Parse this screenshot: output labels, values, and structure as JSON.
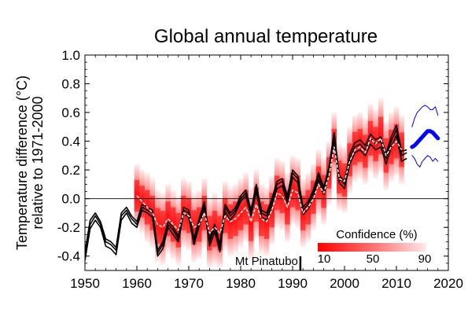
{
  "chart_data": {
    "type": "line",
    "title": "Global annual temperature",
    "ylabel": [
      "Temperature difference (°C)",
      "relative to 1971-2000"
    ],
    "xlim": [
      1950,
      2020
    ],
    "ylim": [
      -0.5,
      1.0
    ],
    "x_ticks": [
      1950,
      1960,
      1970,
      1980,
      1990,
      2000,
      2010,
      2020
    ],
    "y_ticks": [
      -0.4,
      -0.2,
      0.0,
      0.2,
      0.4,
      0.6,
      0.8,
      1.0
    ],
    "y_tick_labels": [
      "-0.4",
      "-0.2",
      "0.0",
      "0.2",
      "0.4",
      "0.6",
      "0.8",
      "1.0"
    ],
    "zero_line": 0.0,
    "annotations": [
      {
        "text": "Mt Pinatubo",
        "x": 1991.5
      }
    ],
    "confidence_legend": {
      "title": "Confidence (%)",
      "labels": [
        "10",
        "50",
        "90"
      ],
      "colors": [
        "#ff0000",
        "#ffe6e6"
      ]
    },
    "series": [
      {
        "color": "#000000",
        "x": [
          1950,
          1951,
          1952,
          1953,
          1954,
          1955,
          1956,
          1957,
          1958,
          1959,
          1960,
          1961,
          1962,
          1963,
          1964,
          1965,
          1966,
          1967,
          1968,
          1969,
          1970,
          1971,
          1972,
          1973,
          1974,
          1975,
          1976,
          1977,
          1978,
          1979,
          1980,
          1981,
          1982,
          1983,
          1984,
          1985,
          1986,
          1987,
          1988,
          1989,
          1990,
          1991,
          1992,
          1993,
          1994,
          1995,
          1996,
          1997,
          1998,
          1999,
          2000,
          2001,
          2002,
          2003,
          2004,
          2005,
          2006,
          2007,
          2008,
          2009,
          2010,
          2011,
          2012
        ],
        "values": [
          -0.4,
          -0.18,
          -0.12,
          -0.18,
          -0.3,
          -0.32,
          -0.36,
          -0.12,
          -0.08,
          -0.14,
          -0.18,
          -0.06,
          -0.08,
          -0.1,
          -0.38,
          -0.32,
          -0.18,
          -0.22,
          -0.28,
          -0.08,
          -0.1,
          -0.3,
          -0.16,
          -0.04,
          -0.3,
          -0.2,
          -0.34,
          -0.06,
          -0.12,
          -0.08,
          0.0,
          0.04,
          -0.1,
          0.08,
          -0.1,
          -0.12,
          -0.02,
          0.1,
          0.12,
          0.0,
          0.18,
          0.14,
          -0.08,
          -0.04,
          0.04,
          0.16,
          0.06,
          0.2,
          0.42,
          0.14,
          0.1,
          0.28,
          0.36,
          0.38,
          0.34,
          0.42,
          0.38,
          0.4,
          0.28,
          0.4,
          0.48,
          0.3,
          0.32
        ]
      },
      {
        "color": "#000000",
        "x": [
          1950,
          1951,
          1952,
          1953,
          1954,
          1955,
          1956,
          1957,
          1958,
          1959,
          1960,
          1961,
          1962,
          1963,
          1964,
          1965,
          1966,
          1967,
          1968,
          1969,
          1970,
          1971,
          1972,
          1973,
          1974,
          1975,
          1976,
          1977,
          1978,
          1979,
          1980,
          1981,
          1982,
          1983,
          1984,
          1985,
          1986,
          1987,
          1988,
          1989,
          1990,
          1991,
          1992,
          1993,
          1994,
          1995,
          1996,
          1997,
          1998,
          1999,
          2000,
          2001,
          2002,
          2003,
          2004,
          2005,
          2006,
          2007,
          2008,
          2009,
          2010,
          2011,
          2012
        ],
        "values": [
          -0.43,
          -0.21,
          -0.15,
          -0.2,
          -0.33,
          -0.35,
          -0.39,
          -0.15,
          -0.1,
          -0.17,
          -0.2,
          -0.08,
          -0.1,
          -0.13,
          -0.4,
          -0.35,
          -0.2,
          -0.25,
          -0.3,
          -0.1,
          -0.13,
          -0.32,
          -0.19,
          -0.06,
          -0.33,
          -0.23,
          -0.37,
          -0.09,
          -0.15,
          -0.1,
          -0.02,
          0.02,
          -0.12,
          0.05,
          -0.13,
          -0.15,
          -0.05,
          0.07,
          0.09,
          -0.03,
          0.15,
          0.11,
          -0.11,
          -0.07,
          0.01,
          0.13,
          0.03,
          0.17,
          0.38,
          0.11,
          0.07,
          0.24,
          0.32,
          0.34,
          0.3,
          0.38,
          0.34,
          0.36,
          0.24,
          0.36,
          0.44,
          0.26,
          0.28
        ]
      },
      {
        "color": "#000000",
        "x": [
          1950,
          1951,
          1952,
          1953,
          1954,
          1955,
          1956,
          1957,
          1958,
          1959,
          1960,
          1961,
          1962,
          1963,
          1964,
          1965,
          1966,
          1967,
          1968,
          1969,
          1970,
          1971,
          1972,
          1973,
          1974,
          1975,
          1976,
          1977,
          1978,
          1979,
          1980,
          1981,
          1982,
          1983,
          1984,
          1985,
          1986,
          1987,
          1988,
          1989,
          1990,
          1991,
          1992,
          1993,
          1994,
          1995,
          1996,
          1997,
          1998,
          1999,
          2000,
          2001,
          2002,
          2003,
          2004,
          2005,
          2006,
          2007,
          2008,
          2009,
          2010,
          2011,
          2012
        ],
        "values": [
          -0.37,
          -0.15,
          -0.1,
          -0.16,
          -0.28,
          -0.3,
          -0.34,
          -0.1,
          -0.06,
          -0.12,
          -0.16,
          -0.04,
          -0.06,
          -0.08,
          -0.36,
          -0.3,
          -0.16,
          -0.2,
          -0.26,
          -0.06,
          -0.08,
          -0.28,
          -0.14,
          -0.02,
          -0.28,
          -0.18,
          -0.32,
          -0.04,
          -0.1,
          -0.06,
          0.02,
          0.06,
          -0.08,
          0.1,
          -0.08,
          -0.1,
          0.0,
          0.12,
          0.14,
          0.02,
          0.2,
          0.16,
          -0.06,
          -0.02,
          0.06,
          0.18,
          0.08,
          0.22,
          0.46,
          0.16,
          0.12,
          0.31,
          0.39,
          0.41,
          0.37,
          0.45,
          0.41,
          0.43,
          0.31,
          0.43,
          0.51,
          0.33,
          0.34
        ]
      },
      {
        "color": "#ffffff",
        "dashed": true,
        "x": [
          1960,
          1961,
          1962,
          1963,
          1964,
          1965,
          1966,
          1967,
          1968,
          1969,
          1970,
          1971,
          1972,
          1973,
          1974,
          1975,
          1976,
          1977,
          1978,
          1979,
          1980,
          1981,
          1982,
          1983,
          1984,
          1985,
          1986,
          1987,
          1988,
          1989,
          1990,
          1991,
          1992,
          1993,
          1994,
          1995,
          1996,
          1997,
          1998,
          1999,
          2000,
          2001,
          2002,
          2003,
          2004,
          2005,
          2006,
          2007,
          2008,
          2009,
          2010,
          2011
        ],
        "values": [
          0.02,
          -0.02,
          -0.06,
          -0.1,
          -0.18,
          -0.2,
          -0.14,
          -0.18,
          -0.22,
          -0.1,
          -0.12,
          -0.2,
          -0.18,
          -0.1,
          -0.24,
          -0.2,
          -0.24,
          -0.12,
          -0.16,
          -0.14,
          -0.1,
          -0.06,
          -0.16,
          -0.04,
          -0.14,
          -0.16,
          -0.08,
          0.04,
          0.02,
          -0.06,
          0.06,
          0.04,
          -0.1,
          -0.06,
          0.0,
          0.1,
          0.04,
          0.16,
          0.36,
          0.14,
          0.12,
          0.26,
          0.34,
          0.36,
          0.32,
          0.42,
          0.38,
          0.42,
          0.3,
          0.36,
          0.4,
          0.34
        ]
      }
    ],
    "confidence_band": {
      "x": [
        1960,
        1961,
        1962,
        1963,
        1964,
        1965,
        1966,
        1967,
        1968,
        1969,
        1970,
        1971,
        1972,
        1973,
        1974,
        1975,
        1976,
        1977,
        1978,
        1979,
        1980,
        1981,
        1982,
        1983,
        1984,
        1985,
        1986,
        1987,
        1988,
        1989,
        1990,
        1991,
        1992,
        1993,
        1994,
        1995,
        1996,
        1997,
        1998,
        1999,
        2000,
        2001,
        2002,
        2003,
        2004,
        2005,
        2006,
        2007,
        2008,
        2009,
        2010,
        2011
      ],
      "lower": [
        -0.2,
        -0.24,
        -0.3,
        -0.34,
        -0.44,
        -0.46,
        -0.38,
        -0.42,
        -0.46,
        -0.34,
        -0.36,
        -0.44,
        -0.42,
        -0.34,
        -0.48,
        -0.46,
        -0.48,
        -0.36,
        -0.4,
        -0.38,
        -0.34,
        -0.3,
        -0.42,
        -0.28,
        -0.38,
        -0.4,
        -0.32,
        -0.2,
        -0.22,
        -0.3,
        -0.18,
        -0.2,
        -0.34,
        -0.3,
        -0.22,
        -0.12,
        -0.18,
        -0.04,
        0.14,
        -0.08,
        -0.1,
        0.04,
        0.12,
        0.14,
        0.1,
        0.18,
        0.14,
        0.18,
        0.06,
        0.12,
        0.16,
        0.1
      ],
      "upper": [
        0.24,
        0.2,
        0.18,
        0.14,
        0.06,
        0.04,
        0.1,
        0.06,
        0.02,
        0.14,
        0.12,
        0.04,
        0.06,
        0.14,
        0.0,
        0.04,
        0.0,
        0.12,
        0.08,
        0.1,
        0.14,
        0.18,
        0.08,
        0.2,
        0.1,
        0.08,
        0.16,
        0.28,
        0.26,
        0.18,
        0.3,
        0.28,
        0.14,
        0.18,
        0.24,
        0.34,
        0.28,
        0.4,
        0.6,
        0.38,
        0.36,
        0.5,
        0.58,
        0.6,
        0.56,
        0.66,
        0.62,
        0.7,
        0.54,
        0.6,
        0.64,
        0.58
      ]
    },
    "forecast": {
      "color": "#0000ff",
      "x": [
        2013,
        2013.5,
        2014,
        2014.5,
        2015,
        2015.5,
        2016,
        2016.5,
        2017,
        2017.5,
        2018
      ],
      "central": [
        0.36,
        0.37,
        0.39,
        0.41,
        0.43,
        0.45,
        0.47,
        0.47,
        0.46,
        0.44,
        0.42
      ],
      "lower": [
        0.3,
        0.28,
        0.24,
        0.22,
        0.26,
        0.28,
        0.3,
        0.29,
        0.26,
        0.28,
        0.26
      ],
      "upper": [
        0.5,
        0.56,
        0.6,
        0.62,
        0.64,
        0.65,
        0.64,
        0.62,
        0.62,
        0.64,
        0.58
      ]
    }
  }
}
